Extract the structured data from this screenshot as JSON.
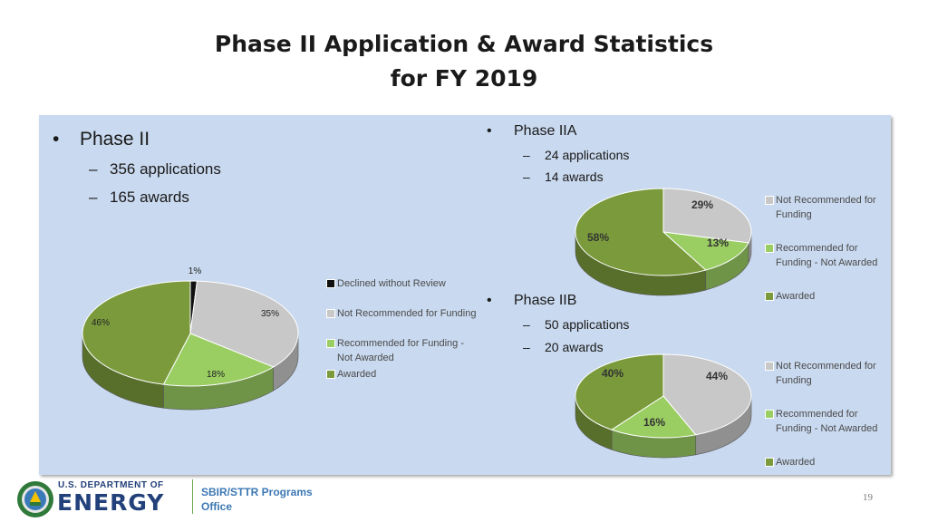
{
  "title_line1": "Phase II Application & Award Statistics",
  "title_line2": "for FY 2019",
  "phase2": {
    "heading": "Phase II",
    "applications": "356 applications",
    "awards": "165 awards"
  },
  "phase2a": {
    "heading": "Phase IIA",
    "applications": "24 applications",
    "awards": "14 awards"
  },
  "phase2b": {
    "heading": "Phase IIB",
    "applications": "50 applications",
    "awards": "20 awards"
  },
  "bullet_char": "•",
  "dash_char": "–",
  "colors": {
    "declined": "#111111",
    "not_recommended": "#c8c8c8",
    "recommended_not_awarded": "#9acd62",
    "awarded": "#7a9a3c"
  },
  "legend_main": [
    "Declined without Review",
    "Not Recommended for Funding",
    "Recommended for Funding - Not Awarded",
    "Awarded"
  ],
  "legend_small": [
    "Not Recommended for Funding",
    "Recommended for Funding - Not Awarded",
    "Awarded"
  ],
  "chart_data": [
    {
      "type": "pie",
      "title": "",
      "categories": [
        "Declined without Review",
        "Not Recommended for Funding",
        "Recommended for Funding - Not Awarded",
        "Awarded"
      ],
      "values": [
        1,
        35,
        18,
        46
      ],
      "labels": [
        "1%",
        "35%",
        "18%",
        "46%"
      ],
      "legend": "right"
    },
    {
      "type": "pie",
      "title": "",
      "categories": [
        "Not Recommended for Funding",
        "Recommended for Funding - Not Awarded",
        "Awarded"
      ],
      "values": [
        29,
        13,
        58
      ],
      "labels": [
        "29%",
        "13%",
        "58%"
      ],
      "legend": "right"
    },
    {
      "type": "pie",
      "title": "",
      "categories": [
        "Not Recommended for Funding",
        "Recommended for Funding - Not Awarded",
        "Awarded"
      ],
      "values": [
        44,
        16,
        40
      ],
      "labels": [
        "44%",
        "16%",
        "40%"
      ],
      "legend": "right"
    }
  ],
  "footer": {
    "dept_line": "U.S. DEPARTMENT OF",
    "energy": "ENERGY",
    "office_line1": "SBIR/STTR Programs",
    "office_line2": "Office",
    "page_number": "19"
  }
}
